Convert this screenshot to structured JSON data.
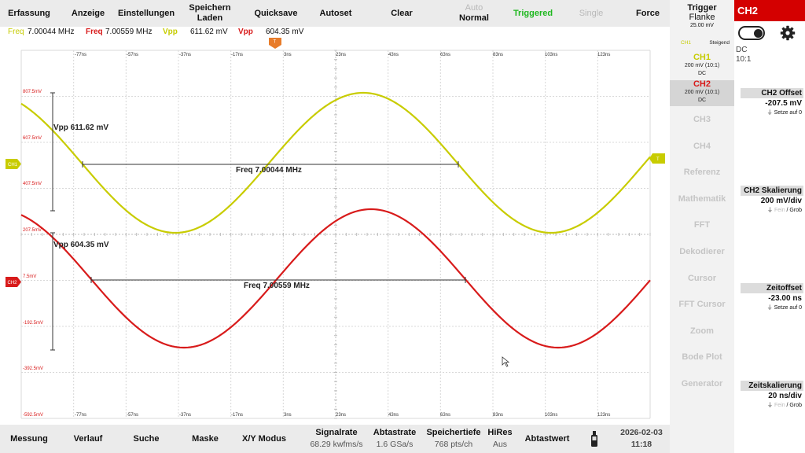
{
  "top_menu": {
    "items": [
      {
        "id": "erfassung",
        "label": "Erfassung"
      },
      {
        "id": "anzeige",
        "label": "Anzeige"
      },
      {
        "id": "einstellungen",
        "label": "Einstellungen"
      },
      {
        "id": "speichern",
        "label": "Speichern Laden",
        "line1": "Speichern",
        "line2": "Laden"
      },
      {
        "id": "quicksave",
        "label": "Quicksave"
      },
      {
        "id": "autoset",
        "label": "Autoset"
      },
      {
        "id": "clear",
        "label": "Clear"
      },
      {
        "id": "mode",
        "line1": "Auto",
        "line2": "Normal"
      },
      {
        "id": "triggered",
        "label": "Triggered"
      },
      {
        "id": "single",
        "label": "Single"
      },
      {
        "id": "force",
        "label": "Force"
      }
    ]
  },
  "measurement_bar": {
    "ch1_freq_label": "Freq",
    "ch1_freq_value": "7.00044 MHz",
    "ch2_freq_label": "Freq",
    "ch2_freq_value": "7.00559 MHz",
    "ch1_vpp_label": "Vpp",
    "ch1_vpp_value": "611.62 mV",
    "ch2_vpp_label": "Vpp",
    "ch2_vpp_value": "604.35 mV"
  },
  "scope": {
    "time_labels": [
      "-77ns",
      "-57ns",
      "-37ns",
      "-17ns",
      "3ns",
      "23ns",
      "43ns",
      "63ns",
      "83ns",
      "103ns",
      "123ns"
    ],
    "voltage_labels": [
      "807.5mV",
      "607.5mV",
      "407.5mV",
      "207.5mV",
      "7.5mV",
      "-192.5mV",
      "-392.5mV",
      "-592.5mV"
    ],
    "trigger_marker": "T",
    "trigger_level_marker": "T",
    "ch1_marker": "CH1",
    "ch2_marker": "CH2",
    "ch1_vpp_text": "Vpp 611.62 mV",
    "ch1_freq_text": "Freq 7.00044 MHz",
    "ch2_vpp_text": "Vpp 604.35 mV",
    "ch2_freq_text": "Freq 7.00559 MHz",
    "colors": {
      "ch1": "#c8cc00",
      "ch2": "#d81b1b",
      "trigger": "#e87c2a",
      "grid": "#d8d8d8",
      "grid_major": "#bcbcbc"
    }
  },
  "bottom_bar": {
    "messung": "Messung",
    "verlauf": "Verlauf",
    "suche": "Suche",
    "maske": "Maske",
    "xy_modus": "X/Y Modus",
    "signalrate_label": "Signalrate",
    "signalrate_value": "68.29 kwfms/s",
    "abtastrate_label": "Abtastrate",
    "abtastrate_value": "1.6 GSa/s",
    "speichertiefe_label": "Speichertiefe",
    "speichertiefe_value": "768 pts/ch",
    "hires_label": "HiRes",
    "hires_value": "Aus",
    "abtastwert": "Abtastwert",
    "usb_icon": "usb-stick-icon",
    "date": "2026-02-03",
    "time": "11:18"
  },
  "channel_panel": {
    "trigger_title": "Trigger",
    "trigger_type": "Flanke",
    "trigger_level": "25.00 mV",
    "trigger_source": "CH1",
    "trigger_slope": "Steigend",
    "ch1": {
      "label": "CH1",
      "scale": "200 mV (10:1)",
      "coupling": "DC"
    },
    "ch2": {
      "label": "CH2",
      "scale": "200 mV (10:1)",
      "coupling": "DC"
    },
    "items": [
      "CH3",
      "CH4",
      "Referenz",
      "Mathematik",
      "FFT",
      "Dekodierer",
      "Cursor",
      "FFT Cursor",
      "Zoom",
      "Bode Plot",
      "Generator"
    ]
  },
  "settings_panel": {
    "header": "CH2",
    "toggle_icon": "toggle-switch-icon",
    "gear_icon": "gear-icon",
    "coupling": "DC",
    "probe": "10:1",
    "offset_title": "CH2 Offset",
    "offset_value": "-207.5 mV",
    "offset_reset": "Setze auf 0",
    "scale_title": "CH2 Skalierung",
    "scale_value": "200 mV/div",
    "scale_fine": "Fein",
    "scale_coarse": "/ Grob",
    "timeoffset_title": "Zeitoffset",
    "timeoffset_value": "-23.00 ns",
    "timeoffset_reset": "Setze auf 0",
    "timescale_title": "Zeitskalierung",
    "timescale_value": "20 ns/div",
    "timescale_fine": "Fein",
    "timescale_coarse": "/ Grob"
  }
}
